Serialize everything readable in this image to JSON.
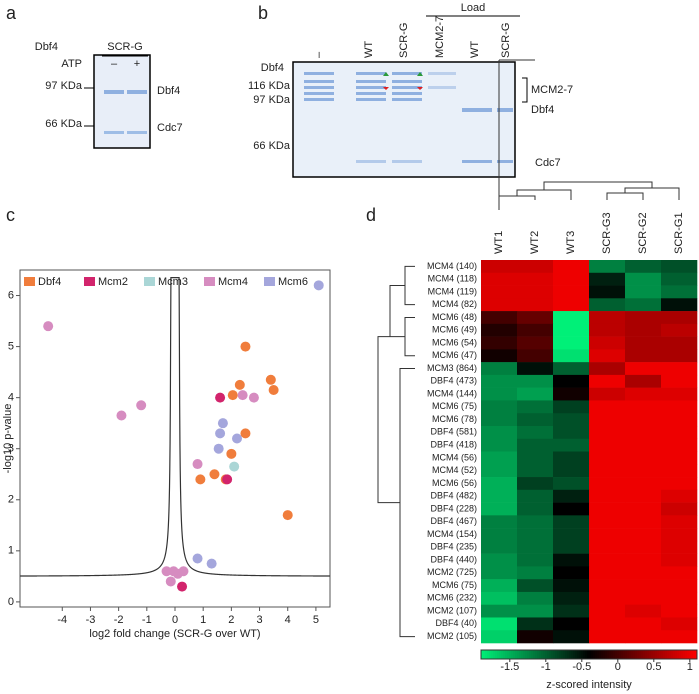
{
  "panel_a": {
    "label": "a",
    "dbf4": "Dbf4",
    "sample": "SCR-G",
    "atp": "ATP",
    "atp_minus": "–",
    "atp_plus": "+",
    "markers": [
      "97 KDa",
      "66 KDa"
    ],
    "bands": [
      "Dbf4",
      "Cdc7"
    ]
  },
  "panel_b": {
    "label": "b",
    "dbf4": "Dbf4",
    "lanes": [
      "–",
      "WT",
      "SCR-G",
      "MCM2-7",
      "WT",
      "SCR-G"
    ],
    "load": "Load",
    "markers": [
      "116 KDa",
      "97 KDa",
      "66 KDa"
    ],
    "bands": [
      "MCM2-7",
      "Dbf4",
      "Cdc7"
    ]
  },
  "chart_data": [
    {
      "type": "scatter",
      "panel_label": "c",
      "xlabel": "log2 fold change (SCR-G over WT)",
      "ylabel": "-log10 p-value",
      "xlim": [
        -5.5,
        5.5
      ],
      "ylim": [
        -0.1,
        6.5
      ],
      "xticks": [
        -4,
        -3,
        -2,
        -1,
        0,
        1,
        2,
        3,
        4,
        5
      ],
      "yticks": [
        0,
        1,
        2,
        3,
        4,
        5,
        6
      ],
      "series": [
        {
          "name": "Dbf4",
          "color": "#f07d3c",
          "x": [
            2.5,
            3.4,
            2.3,
            2.05,
            3.5,
            2.5,
            2.0,
            1.4,
            0.9,
            1.8,
            4.0
          ],
          "y": [
            5.0,
            4.35,
            4.25,
            4.05,
            4.15,
            3.3,
            2.9,
            2.5,
            2.4,
            2.4,
            1.7
          ]
        },
        {
          "name": "Mcm2",
          "color": "#d2246c",
          "x": [
            1.6,
            1.85,
            0.25
          ],
          "y": [
            4.0,
            2.4,
            0.3
          ]
        },
        {
          "name": "Mcm3",
          "color": "#aad6d6",
          "x": [
            2.1
          ],
          "y": [
            2.65
          ]
        },
        {
          "name": "Mcm4",
          "color": "#d68cc0",
          "x": [
            -4.5,
            -1.9,
            -1.2,
            2.8,
            2.4,
            0.8,
            -0.3,
            0.1,
            0.3,
            -0.15,
            -0.05
          ],
          "y": [
            5.4,
            3.65,
            3.85,
            4.0,
            4.05,
            2.7,
            0.6,
            0.55,
            0.6,
            0.4,
            0.6
          ]
        },
        {
          "name": "Mcm6",
          "color": "#a4a6dc",
          "x": [
            5.1,
            2.2,
            1.7,
            1.6,
            1.55,
            0.8,
            1.3
          ],
          "y": [
            6.2,
            3.2,
            3.5,
            3.3,
            3.0,
            0.85,
            0.75
          ]
        }
      ]
    },
    {
      "type": "heatmap",
      "panel_label": "d",
      "x": [
        "WT1",
        "WT2",
        "WT3",
        "SCR-G3",
        "SCR-G2",
        "SCR-G1"
      ],
      "y": [
        "MCM4 (140)",
        "MCM4 (118)",
        "MCM4 (119)",
        "MCM4 (82)",
        "MCM6 (48)",
        "MCM6 (49)",
        "MCM6 (54)",
        "MCM6 (47)",
        "MCM3 (864)",
        "DBF4 (473)",
        "MCM4 (144)",
        "MCM6 (75)",
        "MCM6 (78)",
        "DBF4 (581)",
        "DBF4 (418)",
        "MCM4 (56)",
        "MCM4 (52)",
        "MCM6 (56)",
        "DBF4 (482)",
        "DBF4 (228)",
        "DBF4 (467)",
        "MCM4 (154)",
        "DBF4 (235)",
        "DBF4 (440)",
        "MCM2 (725)",
        "MCM6 (75)",
        "MCM6 (232)",
        "MCM2 (107)",
        "DBF4 (40)",
        "MCM2 (105)"
      ],
      "values": [
        [
          0.8,
          0.8,
          1.0,
          -1.2,
          -1.0,
          -0.9
        ],
        [
          0.9,
          0.9,
          1.0,
          -0.6,
          -1.3,
          -1.0
        ],
        [
          0.9,
          0.9,
          1.0,
          -0.5,
          -1.3,
          -1.1
        ],
        [
          0.9,
          0.9,
          1.0,
          -1.0,
          -1.1,
          -0.5
        ],
        [
          0.0,
          0.2,
          -1.9,
          0.7,
          0.6,
          0.6
        ],
        [
          -0.2,
          0.0,
          -1.9,
          0.7,
          0.6,
          0.7
        ],
        [
          -0.1,
          0.1,
          -1.9,
          0.8,
          0.6,
          0.6
        ],
        [
          -0.3,
          0.0,
          -1.8,
          0.9,
          0.6,
          0.6
        ],
        [
          -1.2,
          -0.5,
          -1.0,
          0.6,
          1.0,
          1.0
        ],
        [
          -1.3,
          -1.3,
          -0.4,
          1.0,
          0.6,
          1.0
        ],
        [
          -1.3,
          -1.4,
          -0.3,
          0.8,
          0.9,
          0.9
        ],
        [
          -1.2,
          -1.1,
          -0.8,
          1.0,
          1.0,
          1.0
        ],
        [
          -1.2,
          -1.0,
          -0.9,
          1.0,
          1.0,
          1.0
        ],
        [
          -1.3,
          -1.1,
          -0.9,
          1.0,
          1.0,
          1.0
        ],
        [
          -1.3,
          -1.0,
          -1.0,
          1.0,
          1.0,
          1.0
        ],
        [
          -1.4,
          -1.0,
          -0.8,
          1.0,
          1.0,
          1.0
        ],
        [
          -1.4,
          -1.0,
          -0.8,
          1.0,
          1.0,
          1.0
        ],
        [
          -1.5,
          -0.8,
          -0.9,
          1.0,
          1.0,
          1.0
        ],
        [
          -1.5,
          -1.0,
          -0.6,
          1.0,
          1.0,
          0.9
        ],
        [
          -1.5,
          -1.0,
          -0.4,
          1.0,
          1.0,
          0.8
        ],
        [
          -1.2,
          -1.1,
          -0.8,
          1.0,
          1.0,
          0.9
        ],
        [
          -1.2,
          -1.1,
          -0.8,
          1.0,
          1.0,
          0.9
        ],
        [
          -1.2,
          -1.1,
          -0.8,
          1.0,
          1.0,
          0.9
        ],
        [
          -1.3,
          -1.1,
          -0.5,
          1.0,
          1.0,
          0.9
        ],
        [
          -1.3,
          -1.2,
          -0.4,
          1.0,
          1.0,
          1.0
        ],
        [
          -1.5,
          -0.9,
          -0.5,
          1.0,
          1.0,
          1.0
        ],
        [
          -1.6,
          -1.2,
          -0.6,
          1.0,
          1.0,
          1.0
        ],
        [
          -1.3,
          -1.3,
          -0.7,
          1.0,
          0.9,
          1.0
        ],
        [
          -1.8,
          -0.7,
          -0.4,
          1.0,
          1.0,
          0.9
        ],
        [
          -1.7,
          -0.3,
          -0.5,
          1.0,
          1.0,
          1.0
        ]
      ],
      "colors": [
        "#00f078",
        "#000000",
        "#ff0000"
      ],
      "clim": [
        -1.9,
        1.1
      ],
      "cticks": [
        -1.5,
        -1,
        -0.5,
        0,
        0.5,
        1
      ],
      "clabel": "z-scored intensity"
    }
  ]
}
